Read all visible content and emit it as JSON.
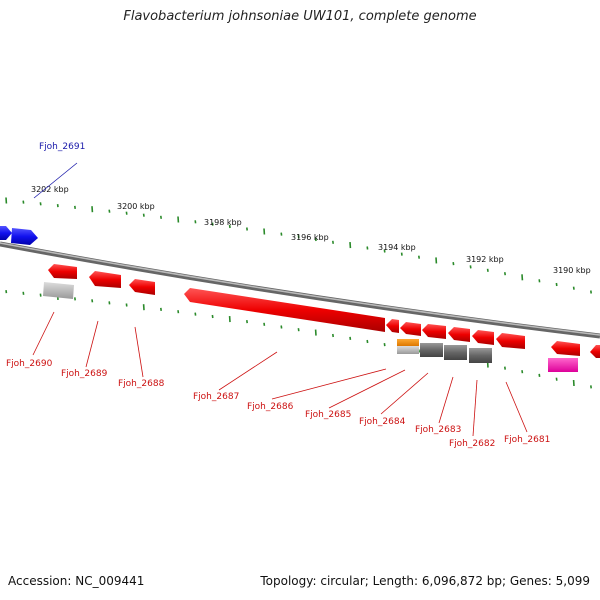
{
  "title": "Flavobacterium johnsoniae UW101, complete genome",
  "accession": "Accession: NC_009441",
  "summary": "Topology: circular; Length: 6,096,872 bp; Genes: 5,099",
  "colors": {
    "backbone": "#888888",
    "ticks": "#2a8a2a",
    "forward_gene": "#1a1aee",
    "reverse_gene": "#ee1111",
    "label_forward": "#1a1aaa",
    "label_reverse": "#cc1111"
  },
  "tick_labels": [
    "3202 kbp",
    "3200 kbp",
    "3198 kbp",
    "3196 kbp",
    "3194 kbp",
    "3192 kbp",
    "3190 kbp"
  ],
  "genes": [
    {
      "label": "Fjoh_2691",
      "strand": "forward",
      "color": "#1a1aee"
    },
    {
      "label": "Fjoh_2690",
      "strand": "reverse",
      "color": "#ee1111"
    },
    {
      "label": "Fjoh_2689",
      "strand": "reverse",
      "color": "#ee1111"
    },
    {
      "label": "Fjoh_2688",
      "strand": "reverse",
      "color": "#ee1111"
    },
    {
      "label": "Fjoh_2687",
      "strand": "reverse",
      "color": "#ee1111"
    },
    {
      "label": "Fjoh_2686",
      "strand": "reverse",
      "color": "#ee1111"
    },
    {
      "label": "Fjoh_2685",
      "strand": "reverse",
      "color": "#ee1111"
    },
    {
      "label": "Fjoh_2684",
      "strand": "reverse",
      "color": "#ee1111"
    },
    {
      "label": "Fjoh_2683",
      "strand": "reverse",
      "color": "#ee1111"
    },
    {
      "label": "Fjoh_2682",
      "strand": "reverse",
      "color": "#ee1111"
    },
    {
      "label": "Fjoh_2681",
      "strand": "reverse",
      "color": "#ee1111"
    }
  ]
}
